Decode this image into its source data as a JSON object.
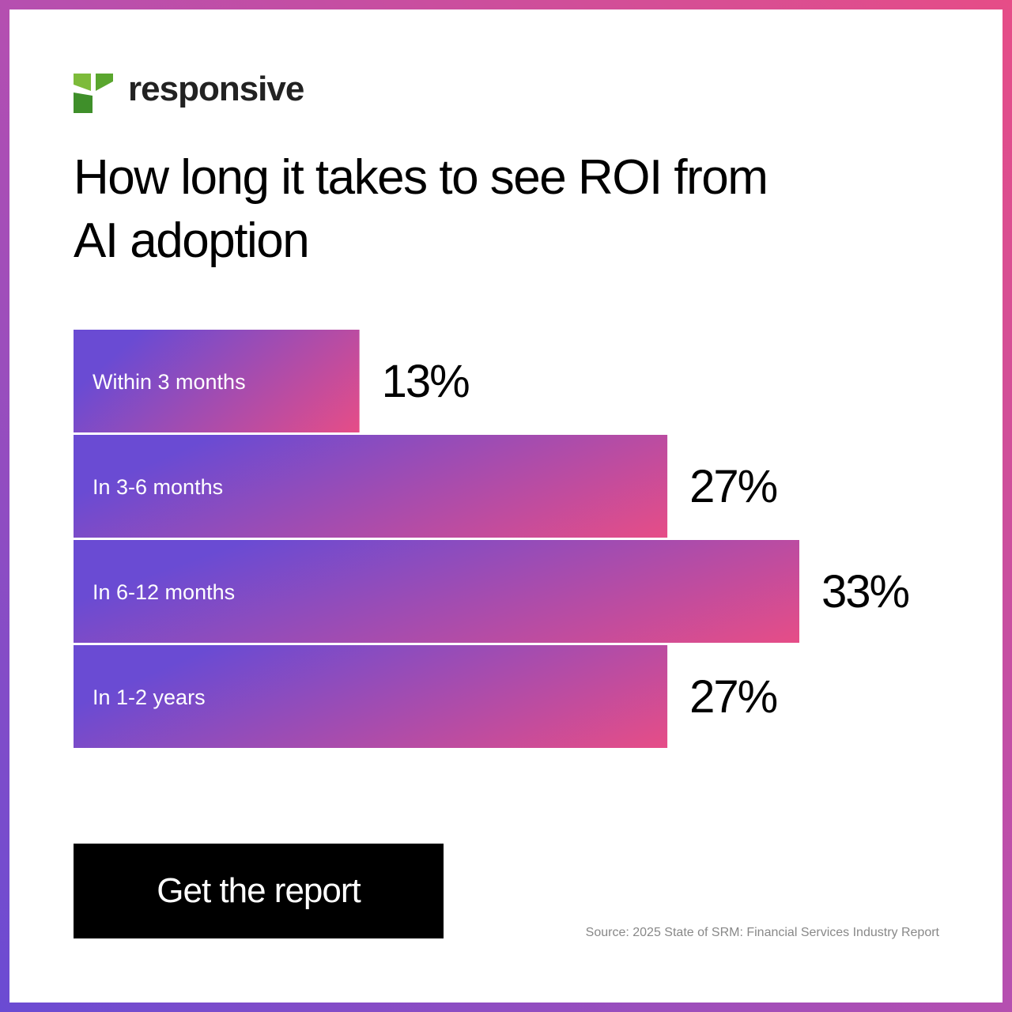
{
  "brand": "responsive",
  "button": "Get the report",
  "source": "Source: 2025 State of SRM: Financial Services Industry Report",
  "chart_data": {
    "type": "bar",
    "orientation": "horizontal",
    "title": "How long it takes to see ROI from AI adoption",
    "categories": [
      "Within 3 months",
      "In 3-6 months",
      "In 6-12 months",
      "In 1-2 years"
    ],
    "values": [
      13,
      27,
      33,
      27
    ],
    "value_labels": [
      "13%",
      "27%",
      "33%",
      "27%"
    ],
    "gradient": [
      "#6a4bd3",
      "#e64d87"
    ]
  }
}
